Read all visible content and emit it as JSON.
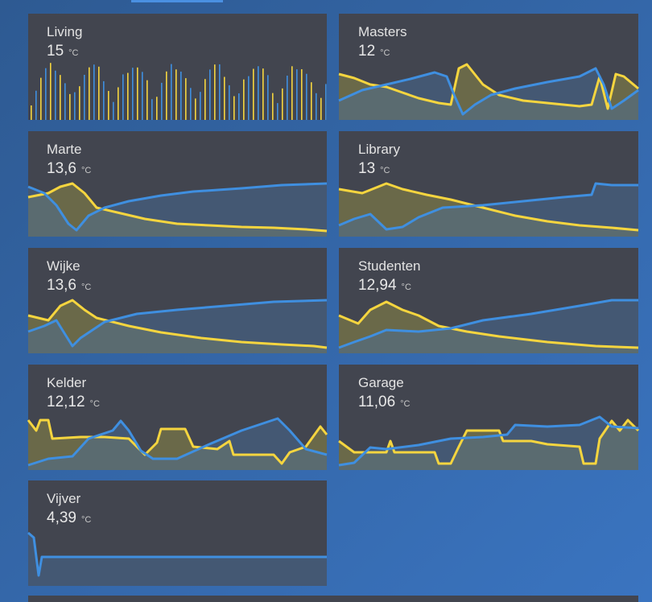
{
  "cards": [
    {
      "name": "Living",
      "value": "15",
      "unit": "°C"
    },
    {
      "name": "Masters",
      "value": "12",
      "unit": "°C"
    },
    {
      "name": "Marte",
      "value": "13,6",
      "unit": "°C"
    },
    {
      "name": "Library",
      "value": "13",
      "unit": "°C"
    },
    {
      "name": "Wijke",
      "value": "13,6",
      "unit": "°C"
    },
    {
      "name": "Studenten",
      "value": "12,94",
      "unit": "°C"
    },
    {
      "name": "Kelder",
      "value": "12,12",
      "unit": "°C"
    },
    {
      "name": "Garage",
      "value": "11,06",
      "unit": "°C"
    },
    {
      "name": "Vijver",
      "value": "4,39",
      "unit": "°C"
    }
  ]
}
